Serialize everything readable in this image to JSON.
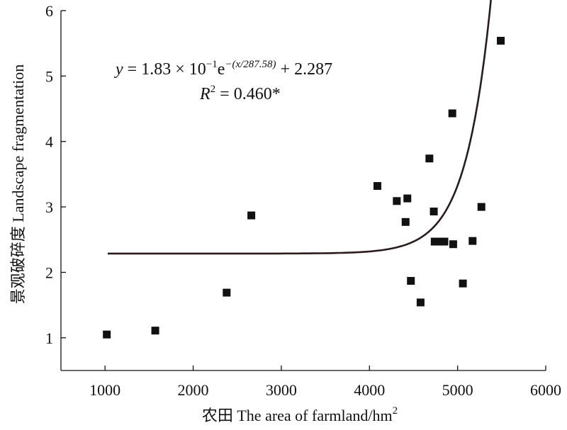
{
  "chart_data": {
    "type": "scatter",
    "xlabel": "农田 The area of farmland/hm",
    "xlabel_sup": "2",
    "ylabel": "景观破碎度 Landscape fragmentation",
    "xlim": [
      500,
      6000
    ],
    "ylim": [
      0.5,
      6
    ],
    "x_ticks": [
      1000,
      2000,
      3000,
      4000,
      5000,
      6000
    ],
    "y_ticks": [
      1,
      2,
      3,
      4,
      5,
      6
    ],
    "x_tick_labels": [
      "1000",
      "2000",
      "3000",
      "4000",
      "5000",
      "6000"
    ],
    "y_tick_labels": [
      "1",
      "2",
      "3",
      "4",
      "5",
      "6"
    ],
    "points": [
      {
        "x": 1020,
        "y": 1.05
      },
      {
        "x": 1570,
        "y": 1.11
      },
      {
        "x": 2380,
        "y": 1.69
      },
      {
        "x": 2660,
        "y": 2.87
      },
      {
        "x": 4090,
        "y": 3.32
      },
      {
        "x": 4310,
        "y": 3.09
      },
      {
        "x": 4410,
        "y": 2.77
      },
      {
        "x": 4430,
        "y": 3.13
      },
      {
        "x": 4470,
        "y": 1.87
      },
      {
        "x": 4580,
        "y": 1.54
      },
      {
        "x": 4680,
        "y": 3.74
      },
      {
        "x": 4730,
        "y": 2.93
      },
      {
        "x": 4740,
        "y": 2.47
      },
      {
        "x": 4800,
        "y": 2.47
      },
      {
        "x": 4850,
        "y": 2.47
      },
      {
        "x": 4940,
        "y": 4.43
      },
      {
        "x": 4950,
        "y": 2.43
      },
      {
        "x": 5060,
        "y": 1.83
      },
      {
        "x": 5170,
        "y": 2.48
      },
      {
        "x": 5270,
        "y": 3.0
      },
      {
        "x": 5490,
        "y": 5.54
      }
    ],
    "fit": {
      "a": 0.183,
      "t": 287.58,
      "c": 2.287,
      "x_start": 1030,
      "x_end": 5480,
      "eq_y": "y",
      "eq_eq": " = 1.83 × 10",
      "eq_exp1": "−1",
      "eq_e": "e",
      "eq_exp2": "−(x/287.58)",
      "eq_tail": " + 2.287",
      "r2_R": "R",
      "r2_sup": "2",
      "r2_tail": " = 0.460*"
    }
  }
}
